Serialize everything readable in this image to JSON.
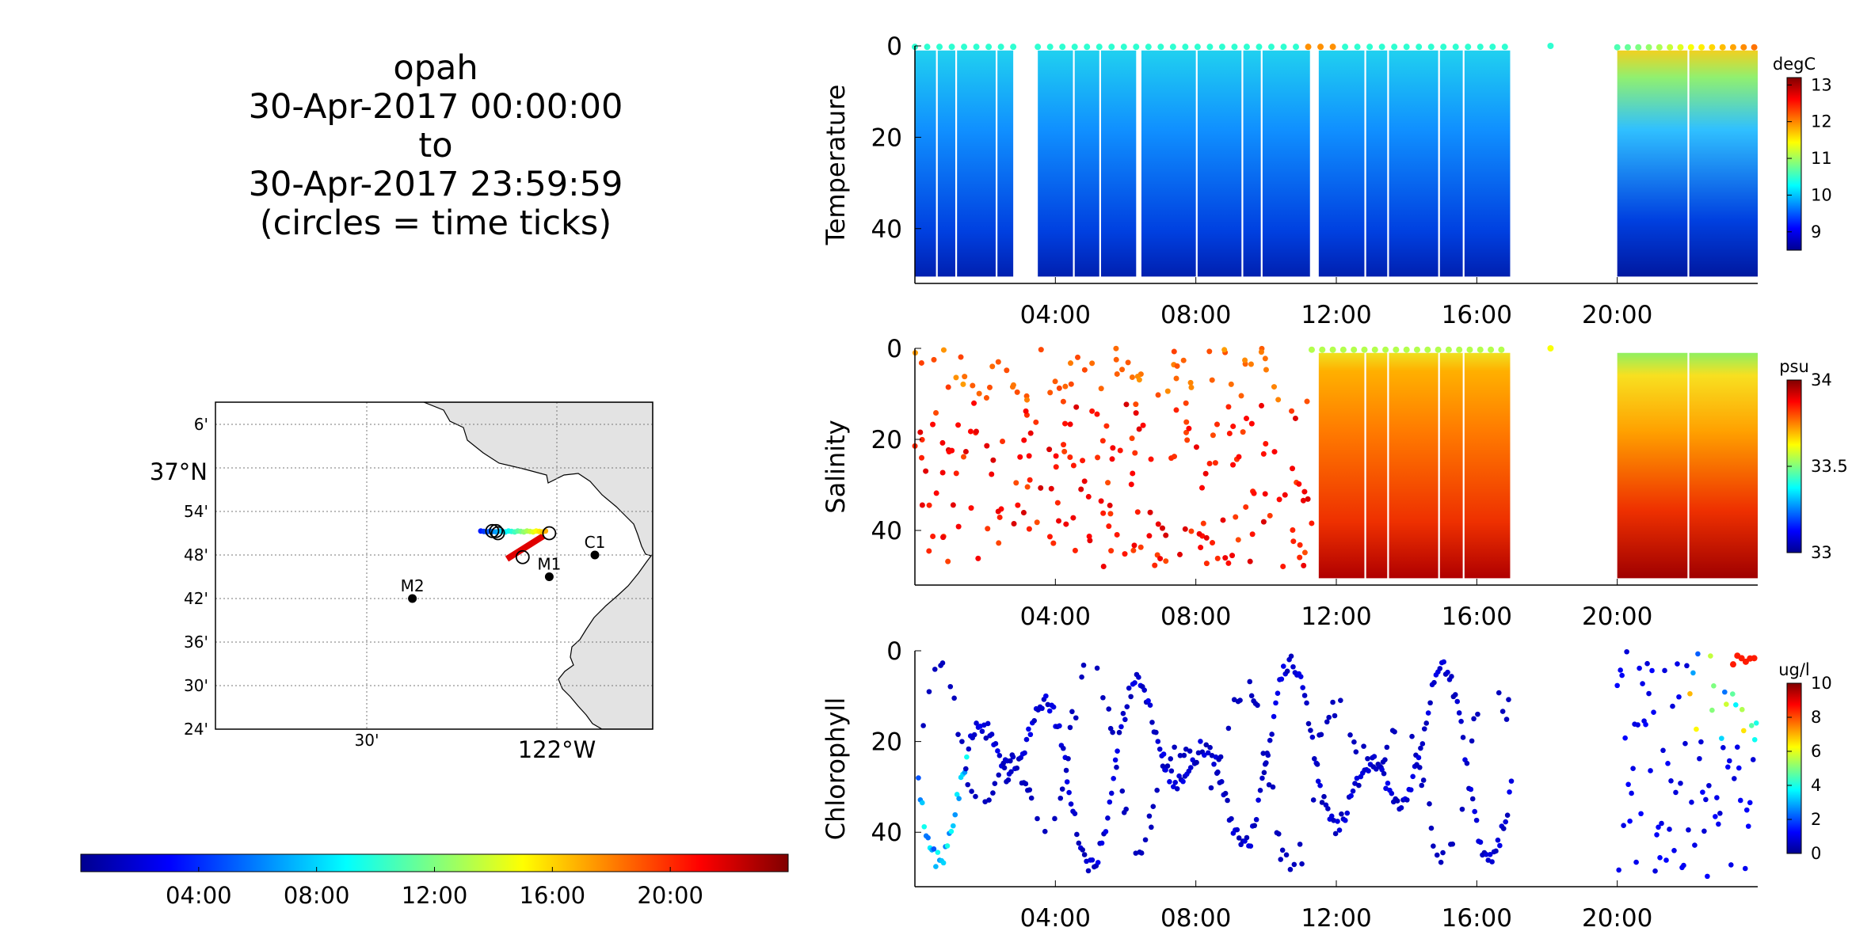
{
  "title_lines": [
    "opah",
    "30-Apr-2017 00:00:00",
    "to",
    "30-Apr-2017 23:59:59",
    "(circles = time ticks)"
  ],
  "time_colorbar": {
    "ticks": [
      "04:00",
      "08:00",
      "12:00",
      "16:00",
      "20:00"
    ]
  },
  "map": {
    "lat_labels": [
      "6'",
      "37°N",
      "54'",
      "48'",
      "42'",
      "36'",
      "30'",
      "24'"
    ],
    "lon_labels": [
      "30'",
      "122°W"
    ],
    "stations": [
      {
        "name": "C1",
        "lon": -121.9,
        "lat": 36.8
      },
      {
        "name": "M1",
        "lon": -122.02,
        "lat": 36.75
      },
      {
        "name": "M2",
        "lon": -122.38,
        "lat": 36.7
      }
    ],
    "track_start": {
      "lon": -122.2,
      "lat": 36.855
    },
    "track_end": {
      "lon": -122.02,
      "lat": 36.85
    },
    "track_ticks": [
      {
        "lon": -122.17,
        "lat": 36.855
      },
      {
        "lon": -122.16,
        "lat": 36.855
      },
      {
        "lon": -122.155,
        "lat": 36.85
      },
      {
        "lon": -122.02,
        "lat": 36.85
      },
      {
        "lon": -122.09,
        "lat": 36.795
      }
    ]
  },
  "chart_data": [
    {
      "type": "heatmap",
      "name": "temperature",
      "ylabel": "Temperature",
      "x_ticks": [
        "04:00",
        "08:00",
        "12:00",
        "16:00",
        "20:00"
      ],
      "y_ticks": [
        "0",
        "20",
        "40"
      ],
      "ylim": [
        52,
        0
      ],
      "xlim_hours": [
        0,
        24
      ],
      "colorbar": {
        "unit": "degC",
        "ticks": [
          "13",
          "12",
          "11",
          "10",
          "9"
        ],
        "min": 8.5,
        "max": 13.2
      },
      "data_hours": [
        [
          0,
          11.4
        ],
        [
          11.4,
          17.0
        ],
        [
          19.8,
          24
        ]
      ]
    },
    {
      "type": "heatmap",
      "name": "salinity",
      "ylabel": "Salinity",
      "x_ticks": [
        "04:00",
        "08:00",
        "12:00",
        "16:00",
        "20:00"
      ],
      "y_ticks": [
        "0",
        "20",
        "40"
      ],
      "ylim": [
        52,
        0
      ],
      "colorbar": {
        "unit": "psu",
        "ticks": [
          "34",
          "33.5",
          "33"
        ],
        "min": 33.0,
        "max": 34.0
      },
      "data_hours": [
        [
          0,
          11.4,
          "sparse"
        ],
        [
          11.5,
          17.0,
          "dense"
        ],
        [
          19.8,
          24,
          "dense"
        ]
      ]
    },
    {
      "type": "scatter",
      "name": "chlorophyll",
      "ylabel": "Chlorophyll",
      "x_ticks": [
        "04:00",
        "08:00",
        "12:00",
        "16:00",
        "20:00"
      ],
      "y_ticks": [
        "0",
        "20",
        "40"
      ],
      "ylim": [
        52,
        0
      ],
      "colorbar": {
        "unit": "ug/l",
        "ticks": [
          "10",
          "8",
          "6",
          "4",
          "2",
          "0"
        ],
        "min": 0,
        "max": 10
      },
      "data_hours": [
        [
          0,
          17.0
        ],
        [
          20.0,
          24
        ]
      ]
    }
  ]
}
